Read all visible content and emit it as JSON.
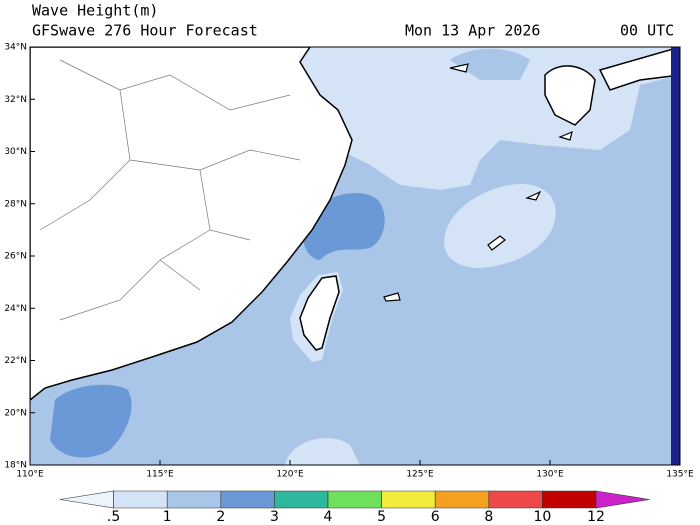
{
  "header": {
    "title": "Wave Height(m)",
    "subtitle": "GFSwave 276 Hour Forecast",
    "date": "Mon 13 Apr 2026",
    "time": "00 UTC"
  },
  "map": {
    "lat_labels": [
      "34°N",
      "32°N",
      "30°N",
      "28°N",
      "26°N",
      "24°N",
      "22°N",
      "20°N",
      "18°N"
    ],
    "lon_labels": [
      "110°E",
      "115°E",
      "120°E",
      "125°E",
      "130°E",
      "135°E"
    ]
  },
  "colorbar": {
    "labels": [
      ".5",
      "1",
      "2",
      "3",
      "4",
      "5",
      "6",
      "8",
      "10",
      "12"
    ],
    "colors": [
      "#eef4fb",
      "#d4e3f5",
      "#a9c5e8",
      "#6b98d6",
      "#2db79b",
      "#6fe05a",
      "#f3ec3c",
      "#f5a020",
      "#ef4848",
      "#c30000",
      "#cc22cc"
    ]
  }
}
